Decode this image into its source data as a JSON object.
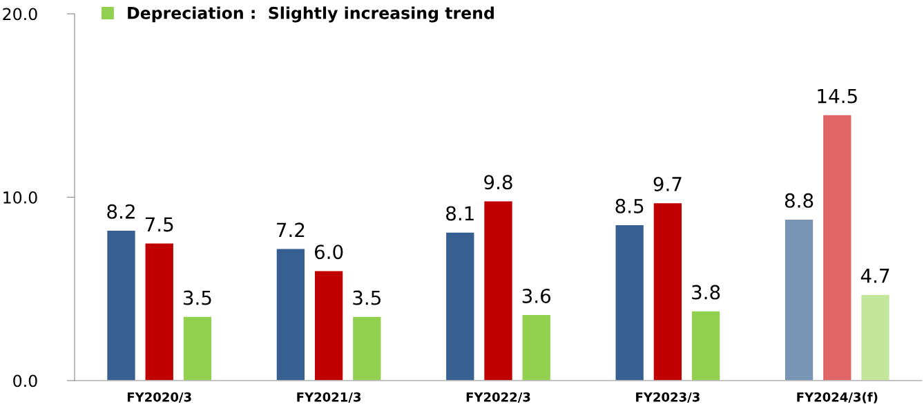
{
  "chart_data": {
    "type": "bar",
    "categories": [
      "FY2020/3",
      "FY2021/3",
      "FY2022/3",
      "FY2023/3",
      "FY2024/3(f)"
    ],
    "series": [
      {
        "colors": [
          "#376092",
          "#376092",
          "#376092",
          "#376092",
          "#7895b6"
        ],
        "values": [
          8.2,
          7.2,
          8.1,
          8.5,
          8.8
        ],
        "value_labels": [
          "8.2",
          "7.2",
          "8.1",
          "8.5",
          "8.8"
        ]
      },
      {
        "colors": [
          "#c00000",
          "#c00000",
          "#c00000",
          "#c00000",
          "#e06666"
        ],
        "values": [
          7.5,
          6.0,
          9.8,
          9.7,
          14.5
        ],
        "value_labels": [
          "7.5",
          "6.0",
          "9.8",
          "9.7",
          "14.5"
        ]
      },
      {
        "name": "Depreciation :  Slightly increasing trend",
        "color": "#92d050",
        "colors": [
          "#92d050",
          "#92d050",
          "#92d050",
          "#92d050",
          "#c3e69a"
        ],
        "values": [
          3.5,
          3.5,
          3.6,
          3.8,
          4.7
        ],
        "value_labels": [
          "3.5",
          "3.5",
          "3.6",
          "3.8",
          "4.7"
        ]
      }
    ],
    "ylim": [
      0,
      20
    ],
    "yticks": [
      {
        "value": 0,
        "label": "0.0"
      },
      {
        "value": 10,
        "label": "10.0"
      },
      {
        "value": 20,
        "label": "20.0"
      }
    ],
    "grid": false,
    "legend": "top left"
  }
}
